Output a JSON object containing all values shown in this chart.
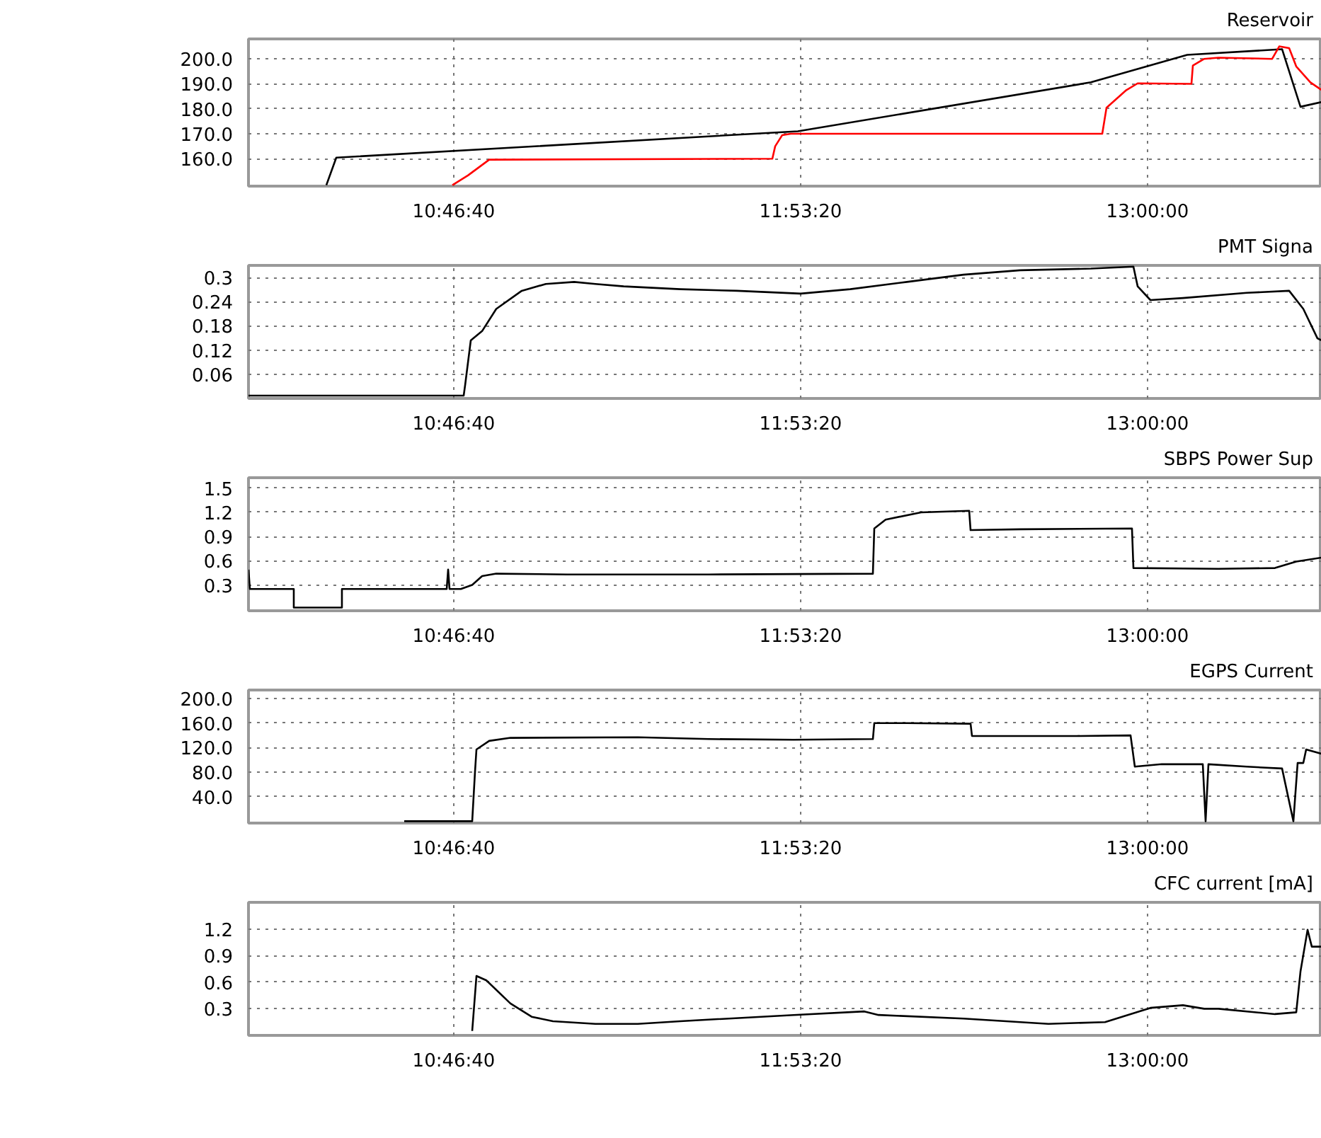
{
  "chart_data": [
    {
      "type": "line",
      "title": "Reservoir",
      "grid": true,
      "xlim": [
        10.1202,
        13.5578
      ],
      "ylim": [
        149,
        208
      ],
      "xticks": [
        {
          "value": 10.7778,
          "label": "10:46:40"
        },
        {
          "value": 11.8889,
          "label": "11:53:20"
        },
        {
          "value": 13.0,
          "label": "13:00:00"
        }
      ],
      "yticks": [
        {
          "value": 160,
          "label": "160.0"
        },
        {
          "value": 170,
          "label": "170.0"
        },
        {
          "value": 180,
          "label": "180.0"
        },
        {
          "value": 190,
          "label": "190.0"
        },
        {
          "value": 200,
          "label": "200.0"
        }
      ],
      "series": [
        {
          "color": "#000000",
          "x": [
            10.3696,
            10.4014,
            11.8798,
            12.8186,
            13.127,
            13.4308,
            13.4898,
            13.5578
          ],
          "values": [
            149.4,
            160.4,
            171.0,
            190.6,
            201.6,
            203.9,
            180.8,
            182.7
          ]
        },
        {
          "color": "#ff0000",
          "x": [
            10.7733,
            10.8231,
            10.8912,
            11.7982,
            11.8073,
            11.8295,
            11.8572,
            12.8549,
            12.8685,
            12.932,
            12.9683,
            13.1406,
            13.1451,
            13.1814,
            13.2268,
            13.3991,
            13.4218,
            13.4535,
            13.4762,
            13.5215,
            13.5578
          ],
          "values": [
            149.4,
            153.3,
            159.6,
            160,
            165,
            169.4,
            170,
            170,
            180.4,
            187.5,
            190.2,
            190,
            197.3,
            200,
            200.5,
            200,
            205,
            204.3,
            197,
            190.6,
            187.5
          ]
        }
      ]
    },
    {
      "type": "line",
      "title": "PMT Signa",
      "grid": true,
      "xlim": [
        10.1202,
        13.5578
      ],
      "ylim": [
        0,
        0.33
      ],
      "xticks": [
        {
          "value": 10.7778,
          "label": "10:46:40"
        },
        {
          "value": 11.8889,
          "label": "11:53:20"
        },
        {
          "value": 13.0,
          "label": "13:00:00"
        }
      ],
      "yticks": [
        0.06,
        0.12,
        0.18,
        0.24,
        0.3
      ],
      "series": [
        {
          "color": "#000000",
          "x": [
            10.1202,
            10.8095,
            10.8141,
            10.8322,
            10.8685,
            10.9138,
            10.9955,
            11.0726,
            11.1633,
            11.2313,
            11.322,
            11.5034,
            11.6848,
            11.8889,
            12.0476,
            12.229,
            12.4105,
            12.5919,
            12.8186,
            12.9547,
            12.9683,
            13.0091,
            13.1134,
            13.3175,
            13.4535,
            13.4989,
            13.5442,
            13.5578
          ],
          "values": [
            0.007,
            0.007,
            0.033,
            0.144,
            0.167,
            0.222,
            0.267,
            0.284,
            0.289,
            0.284,
            0.278,
            0.271,
            0.267,
            0.26,
            0.271,
            0.289,
            0.307,
            0.318,
            0.322,
            0.327,
            0.278,
            0.244,
            0.249,
            0.262,
            0.267,
            0.222,
            0.149,
            0.144
          ]
        }
      ]
    },
    {
      "type": "line",
      "title": "SBPS Power Sup",
      "grid": true,
      "xlim": [
        10.1202,
        13.5578
      ],
      "ylim": [
        -0.02,
        1.63
      ],
      "xticks": [
        {
          "value": 10.7778,
          "label": "10:46:40"
        },
        {
          "value": 11.8889,
          "label": "11:53:20"
        },
        {
          "value": 13.0,
          "label": "13:00:00"
        }
      ],
      "yticks": [
        0.3,
        0.6,
        0.9,
        1.2,
        1.5
      ],
      "series": [
        {
          "color": "#000000",
          "x": [
            10.1202,
            10.1247,
            10.2653,
            10.2653,
            10.4195,
            10.4195,
            10.7551,
            10.7597,
            10.7642,
            10.8005,
            10.8368,
            10.8685,
            10.9138,
            11.1406,
            11.5941,
            12.1202,
            12.1247,
            12.161,
            12.2744,
            12.4286,
            12.4331,
            12.5919,
            12.9501,
            12.9547,
            13.2268,
            13.4082,
            13.4762,
            13.5578
          ],
          "values": [
            0.49,
            0.25,
            0.25,
            0.02,
            0.02,
            0.25,
            0.25,
            0.49,
            0.25,
            0.25,
            0.3,
            0.41,
            0.44,
            0.43,
            0.43,
            0.44,
            1.0,
            1.11,
            1.2,
            1.22,
            0.98,
            0.99,
            1.0,
            0.51,
            0.5,
            0.51,
            0.59,
            0.64
          ]
        }
      ]
    },
    {
      "type": "line",
      "title": "EGPS Current",
      "grid": true,
      "xlim": [
        10.1202,
        13.5578
      ],
      "ylim": [
        -3,
        214
      ],
      "xticks": [
        {
          "value": 10.7778,
          "label": "10:46:40"
        },
        {
          "value": 11.8889,
          "label": "11:53:20"
        },
        {
          "value": 13.0,
          "label": "13:00:00"
        }
      ],
      "yticks": [
        {
          "value": 40,
          "label": "40.0"
        },
        {
          "value": 80,
          "label": "80.0"
        },
        {
          "value": 120,
          "label": "120.0"
        },
        {
          "value": 160,
          "label": "160.0"
        },
        {
          "value": 200,
          "label": "200.0"
        }
      ],
      "series": [
        {
          "color": "#000000",
          "x": [
            10.6191,
            10.8368,
            10.8458,
            10.8504,
            10.8912,
            10.9592,
            11.3674,
            11.5941,
            11.8662,
            12.1202,
            12.1247,
            12.229,
            12.4331,
            12.4376,
            12.7732,
            12.9456,
            12.9592,
            13.0454,
            13.1769,
            13.1859,
            13.195,
            13.3175,
            13.4308,
            13.4671,
            13.4807,
            13.4989,
            13.508,
            13.5578
          ],
          "values": [
            0,
            0,
            81,
            117,
            131,
            136,
            137,
            134,
            133,
            134,
            160,
            160,
            159,
            139,
            139,
            140,
            89,
            93,
            93,
            0,
            93,
            89,
            86,
            0,
            95,
            95,
            117,
            110
          ]
        }
      ]
    },
    {
      "type": "line",
      "title": "CFC current [mA]",
      "grid": true,
      "xlim": [
        10.1202,
        13.5578
      ],
      "ylim": [
        0,
        1.5
      ],
      "xticks": [
        {
          "value": 10.7778,
          "label": "10:46:40"
        },
        {
          "value": 11.8889,
          "label": "11:53:20"
        },
        {
          "value": 13.0,
          "label": "13:00:00"
        }
      ],
      "yticks": [
        0.3,
        0.6,
        0.9,
        1.2
      ],
      "series": [
        {
          "color": "#000000",
          "x": [
            10.8368,
            10.8504,
            10.8821,
            10.9592,
            11.0272,
            11.0952,
            11.2313,
            11.3674,
            11.5034,
            11.8662,
            12.093,
            12.1383,
            12.4105,
            12.6825,
            12.8639,
            13.0091,
            13.1134,
            13.1814,
            13.2268,
            13.4082,
            13.4762,
            13.4898,
            13.5125,
            13.5261,
            13.5578
          ],
          "values": [
            0.05,
            0.67,
            0.62,
            0.36,
            0.21,
            0.16,
            0.13,
            0.13,
            0.16,
            0.23,
            0.27,
            0.23,
            0.19,
            0.13,
            0.15,
            0.31,
            0.34,
            0.3,
            0.3,
            0.24,
            0.26,
            0.72,
            1.19,
            1.0,
            1.0
          ]
        }
      ]
    }
  ]
}
